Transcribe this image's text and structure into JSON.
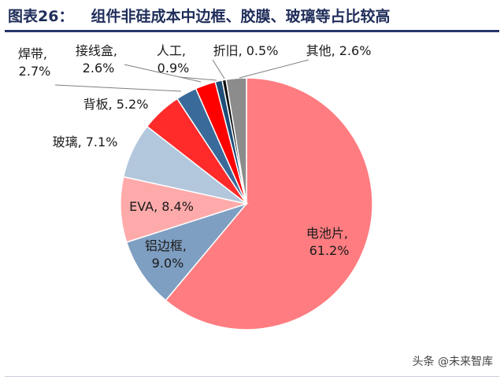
{
  "figure": {
    "label": "图表26：",
    "title": "组件非硅成本中边框、胶膜、玻璃等占比较高"
  },
  "watermark": "头条 @未来智库",
  "chart_data": {
    "type": "pie",
    "start_angle_deg": 0,
    "direction": "clockwise",
    "slices": [
      {
        "label": "电池片",
        "value": 61.2,
        "value_text": "61.2%",
        "color": "#ff7c80"
      },
      {
        "label": "铝边框",
        "value": 9.0,
        "value_text": "9.0%",
        "color": "#7f9fc2"
      },
      {
        "label": "EVA",
        "value": 8.4,
        "value_text": "8.4%",
        "color": "#ffaaaa"
      },
      {
        "label": "玻璃",
        "value": 7.1,
        "value_text": "7.1%",
        "color": "#b3c7dc"
      },
      {
        "label": "背板",
        "value": 5.2,
        "value_text": "5.2%",
        "color": "#ff2a2a"
      },
      {
        "label": "焊带",
        "value": 2.7,
        "value_text": "2.7%",
        "color": "#3a6a9a"
      },
      {
        "label": "接线盒",
        "value": 2.6,
        "value_text": "2.6%",
        "color": "#ff0000"
      },
      {
        "label": "人工",
        "value": 0.9,
        "value_text": "0.9%",
        "color": "#1f4e79"
      },
      {
        "label": "折旧",
        "value": 0.5,
        "value_text": "0.5%",
        "color": "#0d0d0d"
      },
      {
        "label": "其他",
        "value": 2.6,
        "value_text": "2.6%",
        "color": "#8c8c8c"
      }
    ]
  }
}
